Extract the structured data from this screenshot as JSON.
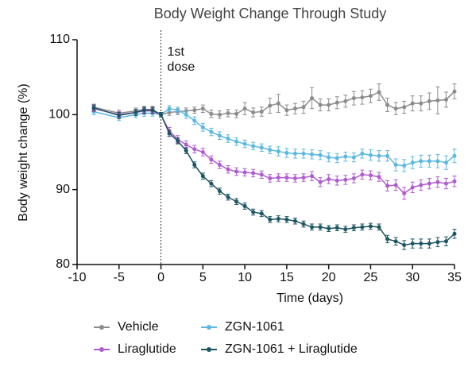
{
  "chart_data": {
    "type": "line",
    "title": "Body Weight Change Through Study",
    "annotation": [
      "1st",
      "dose"
    ],
    "vline": 0,
    "xlabel": "Time (days)",
    "ylabel": "Body weight change (%)",
    "x": [
      -8,
      -5,
      -3,
      -2,
      -1,
      0,
      1,
      2,
      3,
      4,
      5,
      6,
      7,
      8,
      9,
      10,
      11,
      12,
      13,
      14,
      15,
      16,
      17,
      18,
      19,
      20,
      21,
      22,
      23,
      24,
      25,
      26,
      27,
      28,
      29,
      30,
      31,
      32,
      33,
      34,
      35
    ],
    "xlim": [
      -10,
      35
    ],
    "xticks": [
      -10,
      -5,
      0,
      5,
      10,
      15,
      20,
      25,
      30,
      35
    ],
    "ylim": [
      80,
      110
    ],
    "yticks": [
      80,
      90,
      100,
      110
    ],
    "series": [
      {
        "name": "Vehicle",
        "color": "#8c8c8c",
        "values": [
          101,
          100.2,
          100.5,
          100.7,
          100.7,
          100,
          100.3,
          100.4,
          100.5,
          100.6,
          100.8,
          100.1,
          100,
          100.2,
          100.1,
          100.8,
          100.3,
          100.4,
          101.2,
          101.5,
          100.6,
          100.8,
          101,
          102.2,
          101.3,
          101.3,
          101.6,
          101.8,
          102.2,
          102.3,
          102.5,
          103,
          101.3,
          100.8,
          101,
          101.5,
          101.5,
          101.8,
          101.9,
          102,
          103.1
        ],
        "errors": [
          0.4,
          0.4,
          0.4,
          0.4,
          0.4,
          0.3,
          0.4,
          0.4,
          0.4,
          0.4,
          0.5,
          0.5,
          0.5,
          0.5,
          0.5,
          0.8,
          0.6,
          0.6,
          1,
          1.2,
          0.7,
          0.7,
          0.8,
          1.4,
          0.8,
          0.8,
          0.8,
          0.8,
          0.9,
          0.9,
          0.9,
          1.1,
          0.9,
          0.8,
          0.8,
          1,
          1,
          1.1,
          1.8,
          1,
          1
        ]
      },
      {
        "name": "ZGN-1061",
        "color": "#5bb8e0",
        "values": [
          100.4,
          99.6,
          100,
          100.2,
          100.2,
          100,
          100.8,
          100.6,
          100,
          99.2,
          98.3,
          97.7,
          97.2,
          96.8,
          96.4,
          96.1,
          95.8,
          95.6,
          95.3,
          95.1,
          94.9,
          94.8,
          94.8,
          94.7,
          94.6,
          94.3,
          94.2,
          94.4,
          94.3,
          94.8,
          94.6,
          94.5,
          94.5,
          93.3,
          93.2,
          93.6,
          93.8,
          93.8,
          93.8,
          93.6,
          94.5
        ],
        "errors": [
          0.4,
          0.4,
          0.4,
          0.4,
          0.4,
          0.3,
          0.4,
          0.4,
          0.5,
          0.5,
          0.5,
          0.5,
          0.5,
          0.5,
          0.5,
          0.5,
          0.5,
          0.5,
          0.5,
          0.6,
          0.6,
          0.6,
          0.6,
          0.6,
          0.6,
          0.6,
          0.6,
          0.6,
          0.6,
          0.6,
          0.7,
          0.7,
          0.7,
          0.8,
          0.8,
          0.8,
          0.8,
          0.8,
          0.9,
          0.9,
          0.9
        ]
      },
      {
        "name": "Liraglutide",
        "color": "#b05bd0",
        "values": [
          100.8,
          100,
          100.3,
          100.5,
          100.5,
          100,
          97.8,
          96.7,
          96,
          95.4,
          95,
          94,
          93.3,
          92.7,
          92.4,
          92.3,
          92.2,
          92,
          91.5,
          91.6,
          91.6,
          91.5,
          91.6,
          91.8,
          91,
          91.4,
          91.2,
          91.3,
          91.5,
          92,
          91.9,
          91.7,
          90.5,
          90.6,
          89.5,
          90.3,
          90.6,
          90.8,
          91,
          90.8,
          91.1
        ],
        "errors": [
          0.4,
          0.4,
          0.4,
          0.4,
          0.4,
          0.3,
          0.5,
          0.5,
          0.5,
          0.5,
          0.5,
          0.5,
          0.5,
          0.5,
          0.5,
          0.5,
          0.5,
          0.5,
          0.5,
          0.5,
          0.5,
          0.5,
          0.5,
          0.6,
          0.6,
          0.6,
          0.6,
          0.6,
          0.6,
          0.6,
          0.6,
          0.6,
          0.7,
          0.7,
          0.8,
          0.7,
          0.7,
          0.7,
          0.7,
          0.7,
          0.7
        ]
      },
      {
        "name": "ZGN-1061 + Liraglutide",
        "color": "#1d5563",
        "values": [
          100.9,
          99.9,
          100.3,
          100.6,
          100.6,
          100,
          97.5,
          96.5,
          95.2,
          93.3,
          91.8,
          90.8,
          89.8,
          89,
          88.4,
          87.8,
          87,
          86.8,
          86,
          86.1,
          86,
          85.8,
          85.4,
          85,
          85,
          84.8,
          84.9,
          84.7,
          84.9,
          85,
          85.1,
          85,
          83.4,
          83.1,
          82.6,
          82.8,
          82.8,
          82.8,
          83,
          83.1,
          84.1
        ],
        "errors": [
          0.4,
          0.4,
          0.4,
          0.4,
          0.4,
          0.3,
          0.4,
          0.4,
          0.4,
          0.4,
          0.4,
          0.4,
          0.4,
          0.4,
          0.4,
          0.4,
          0.4,
          0.4,
          0.4,
          0.4,
          0.4,
          0.4,
          0.4,
          0.4,
          0.4,
          0.4,
          0.4,
          0.4,
          0.4,
          0.4,
          0.4,
          0.4,
          0.5,
          0.5,
          0.6,
          0.6,
          0.6,
          0.6,
          0.6,
          0.6,
          0.6
        ]
      }
    ]
  }
}
